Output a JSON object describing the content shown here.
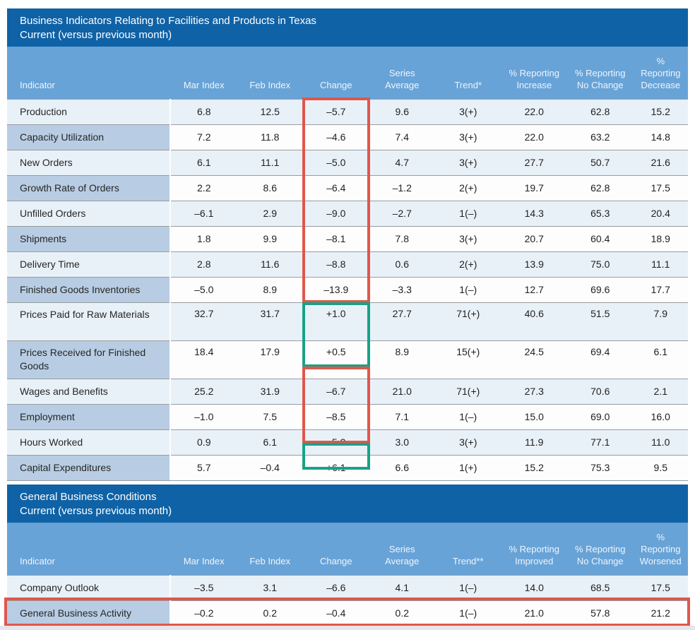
{
  "colors": {
    "header_bar": "#0f62a6",
    "column_band": "#68a3d7",
    "indicator_cell": "#b8cde3",
    "row_light": "#e9f1f8",
    "row_white": "#fdfdfe",
    "gridline": "#989ca0",
    "highlight_red": "#df574c",
    "highlight_green": "#18a287"
  },
  "chart_data": [
    {
      "type": "table",
      "title": "Business Indicators Relating to Facilities and Products in Texas",
      "subtitle": "Current (versus previous month)",
      "columns": [
        "Indicator",
        "Mar Index",
        "Feb Index",
        "Change",
        "Series Average",
        "Trend*",
        "% Reporting Increase",
        "% Reporting No Change",
        "% Reporting Decrease"
      ],
      "rows": [
        [
          "Production",
          "6.8",
          "12.5",
          "–5.7",
          "9.6",
          "3(+)",
          "22.0",
          "62.8",
          "15.2"
        ],
        [
          "Capacity Utilization",
          "7.2",
          "11.8",
          "–4.6",
          "7.4",
          "3(+)",
          "22.0",
          "63.2",
          "14.8"
        ],
        [
          "New Orders",
          "6.1",
          "11.1",
          "–5.0",
          "4.7",
          "3(+)",
          "27.7",
          "50.7",
          "21.6"
        ],
        [
          "Growth Rate of Orders",
          "2.2",
          "8.6",
          "–6.4",
          "–1.2",
          "2(+)",
          "19.7",
          "62.8",
          "17.5"
        ],
        [
          "Unfilled Orders",
          "–6.1",
          "2.9",
          "–9.0",
          "–2.7",
          "1(–)",
          "14.3",
          "65.3",
          "20.4"
        ],
        [
          "Shipments",
          "1.8",
          "9.9",
          "–8.1",
          "7.8",
          "3(+)",
          "20.7",
          "60.4",
          "18.9"
        ],
        [
          "Delivery Time",
          "2.8",
          "11.6",
          "–8.8",
          "0.6",
          "2(+)",
          "13.9",
          "75.0",
          "11.1"
        ],
        [
          "Finished Goods Inventories",
          "–5.0",
          "8.9",
          "–13.9",
          "–3.3",
          "1(–)",
          "12.7",
          "69.6",
          "17.7"
        ],
        [
          "Prices Paid for Raw Materials",
          "32.7",
          "31.7",
          "+1.0",
          "27.7",
          "71(+)",
          "40.6",
          "51.5",
          "7.9"
        ],
        [
          "Prices Received for Finished Goods",
          "18.4",
          "17.9",
          "+0.5",
          "8.9",
          "15(+)",
          "24.5",
          "69.4",
          "6.1"
        ],
        [
          "Wages and Benefits",
          "25.2",
          "31.9",
          "–6.7",
          "21.0",
          "71(+)",
          "27.3",
          "70.6",
          "2.1"
        ],
        [
          "Employment",
          "–1.0",
          "7.5",
          "–8.5",
          "7.1",
          "1(–)",
          "15.0",
          "69.0",
          "16.0"
        ],
        [
          "Hours Worked",
          "0.9",
          "6.1",
          "–5.2",
          "3.0",
          "3(+)",
          "11.9",
          "77.1",
          "11.0"
        ],
        [
          "Capital Expenditures",
          "5.7",
          "–0.4",
          "+6.1",
          "6.6",
          "1(+)",
          "15.2",
          "75.3",
          "9.5"
        ]
      ]
    },
    {
      "type": "table",
      "title": "General Business Conditions",
      "subtitle": "Current (versus previous month)",
      "columns": [
        "Indicator",
        "Mar Index",
        "Feb Index",
        "Change",
        "Series Average",
        "Trend**",
        "% Reporting Improved",
        "% Reporting No Change",
        "% Reporting Worsened"
      ],
      "rows": [
        [
          "Company Outlook",
          "–3.5",
          "3.1",
          "–6.6",
          "4.1",
          "1(–)",
          "14.0",
          "68.5",
          "17.5"
        ],
        [
          "General Business Activity",
          "–0.2",
          "0.2",
          "–0.4",
          "0.2",
          "1(–)",
          "21.0",
          "57.8",
          "21.2"
        ]
      ]
    }
  ],
  "annotations": {
    "boxes": [
      {
        "color": "#df574c",
        "kind": "decrease",
        "target": "Change column: Production through Finished Goods Inventories"
      },
      {
        "color": "#18a287",
        "kind": "increase",
        "target": "Change column: Prices Paid for Raw Materials and Prices Received for Finished Goods"
      },
      {
        "color": "#df574c",
        "kind": "decrease",
        "target": "Change column: Wages and Benefits through Hours Worked"
      },
      {
        "color": "#18a287",
        "kind": "increase",
        "target": "Change column: Capital Expenditures"
      },
      {
        "color": "#df574c",
        "kind": "row-highlight",
        "target": "General Business Activity row"
      }
    ]
  }
}
